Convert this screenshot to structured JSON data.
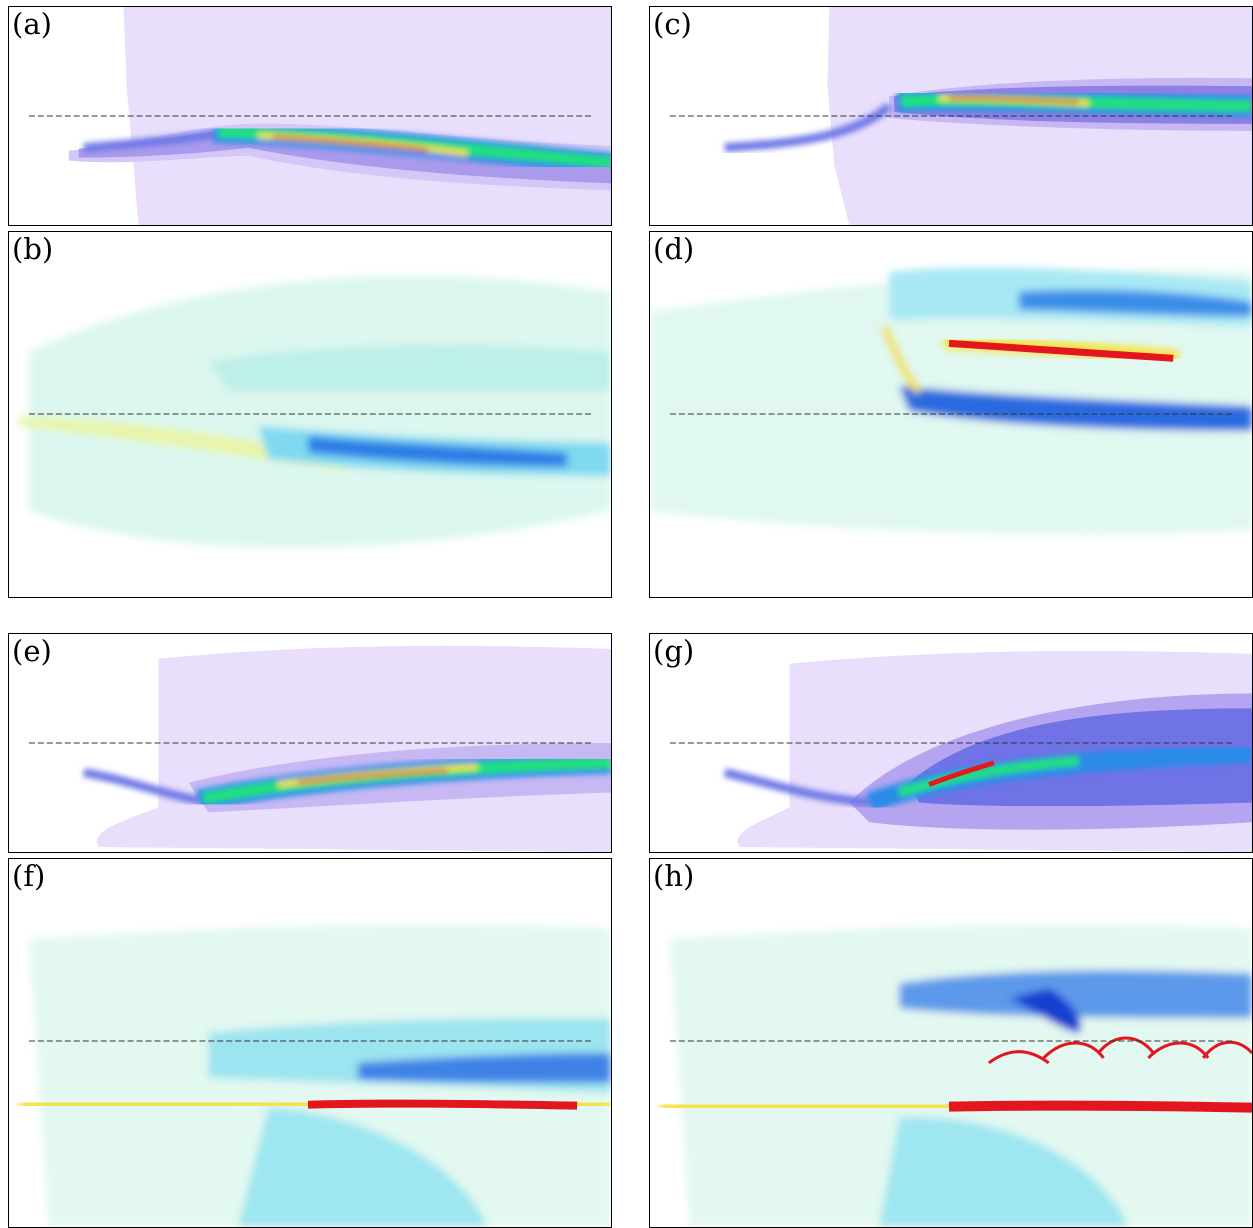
{
  "figure": {
    "panels": [
      {
        "id": "a",
        "label": "(a)"
      },
      {
        "id": "b",
        "label": "(b)"
      },
      {
        "id": "c",
        "label": "(c)"
      },
      {
        "id": "d",
        "label": "(d)"
      },
      {
        "id": "e",
        "label": "(e)"
      },
      {
        "id": "f",
        "label": "(f)"
      },
      {
        "id": "g",
        "label": "(g)"
      },
      {
        "id": "h",
        "label": "(h)"
      }
    ]
  },
  "colors": {
    "background_field": "#e8defa",
    "low": "#b8a8f0",
    "mid_blue": "#2f5fe0",
    "cyan": "#00d8ff",
    "green": "#20e070",
    "yellow": "#f0e040",
    "red": "#e01010",
    "dashed_line": "#333333"
  }
}
